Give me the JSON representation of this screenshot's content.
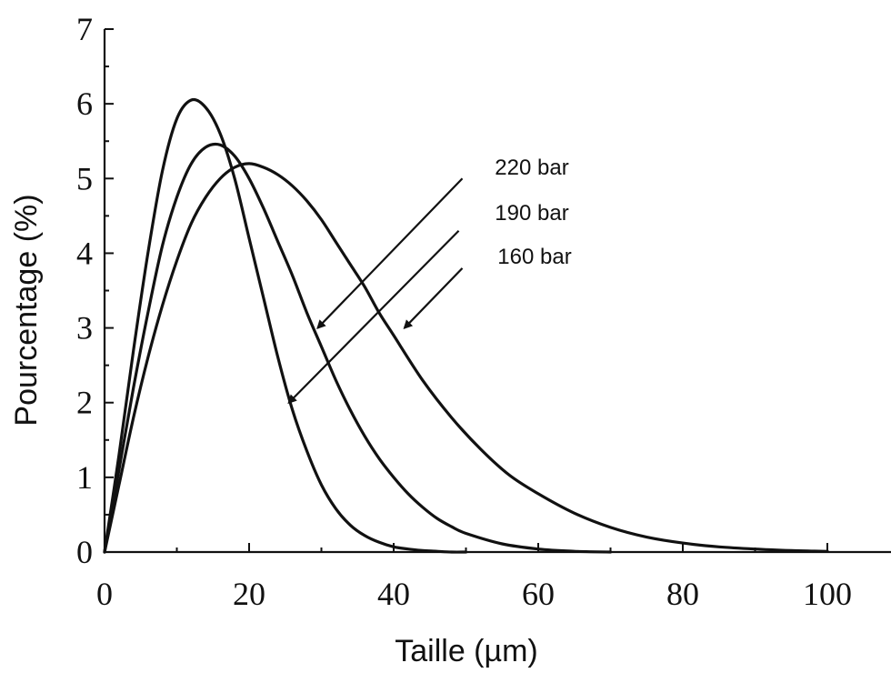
{
  "chart_data": {
    "type": "line",
    "xlabel": "Taille (µm)",
    "ylabel": "Pourcentage (%)",
    "xlim": [
      0,
      100
    ],
    "ylim": [
      0,
      7
    ],
    "x_ticks": [
      0,
      20,
      40,
      60,
      80,
      100
    ],
    "y_ticks": [
      0,
      1,
      2,
      3,
      4,
      5,
      6,
      7
    ],
    "grid": false,
    "legend": "none",
    "series": [
      {
        "name": "220 bar",
        "x": [
          0,
          2,
          4,
          6,
          8,
          10,
          12,
          14,
          16,
          18,
          20,
          22,
          24,
          26,
          28,
          30,
          32,
          34,
          36,
          38,
          40,
          42,
          44,
          46,
          48,
          50
        ],
        "values": [
          0,
          1.3,
          2.7,
          4.0,
          5.1,
          5.8,
          6.05,
          5.95,
          5.6,
          5.0,
          4.2,
          3.4,
          2.6,
          1.9,
          1.35,
          0.9,
          0.58,
          0.36,
          0.22,
          0.13,
          0.07,
          0.04,
          0.02,
          0.01,
          0.0,
          0.0
        ]
      },
      {
        "name": "190 bar",
        "x": [
          0,
          2,
          4,
          6,
          8,
          10,
          12,
          14,
          16,
          18,
          20,
          22,
          24,
          26,
          28,
          30,
          32,
          34,
          36,
          38,
          40,
          42,
          44,
          46,
          48,
          50,
          55,
          60,
          65,
          70
        ],
        "values": [
          0,
          1.1,
          2.2,
          3.2,
          4.1,
          4.75,
          5.2,
          5.42,
          5.45,
          5.3,
          5.0,
          4.6,
          4.15,
          3.7,
          3.2,
          2.75,
          2.3,
          1.9,
          1.55,
          1.25,
          1.0,
          0.78,
          0.6,
          0.45,
          0.34,
          0.25,
          0.11,
          0.04,
          0.01,
          0.0
        ]
      },
      {
        "name": "160 bar",
        "x": [
          0,
          2,
          4,
          6,
          8,
          10,
          12,
          14,
          16,
          18,
          20,
          22,
          24,
          26,
          28,
          30,
          32,
          34,
          36,
          38,
          40,
          44,
          48,
          52,
          56,
          60,
          65,
          70,
          75,
          80,
          85,
          90,
          95,
          100
        ],
        "values": [
          0,
          0.9,
          1.8,
          2.6,
          3.3,
          3.9,
          4.4,
          4.75,
          5.0,
          5.15,
          5.2,
          5.15,
          5.05,
          4.9,
          4.7,
          4.45,
          4.15,
          3.85,
          3.55,
          3.2,
          2.9,
          2.3,
          1.8,
          1.38,
          1.03,
          0.78,
          0.52,
          0.33,
          0.2,
          0.12,
          0.07,
          0.04,
          0.02,
          0.01
        ]
      }
    ],
    "annotations": [
      {
        "label": "220 bar",
        "arrow_from": [
          49.5,
          5.0
        ],
        "arrow_to": [
          29.5,
          3.0
        ]
      },
      {
        "label": "190 bar",
        "arrow_from": [
          49.0,
          4.3
        ],
        "arrow_to": [
          25.5,
          2.0
        ]
      },
      {
        "label": "160 bar",
        "arrow_from": [
          49.5,
          3.8
        ],
        "arrow_to": [
          41.5,
          3.0
        ]
      }
    ]
  }
}
